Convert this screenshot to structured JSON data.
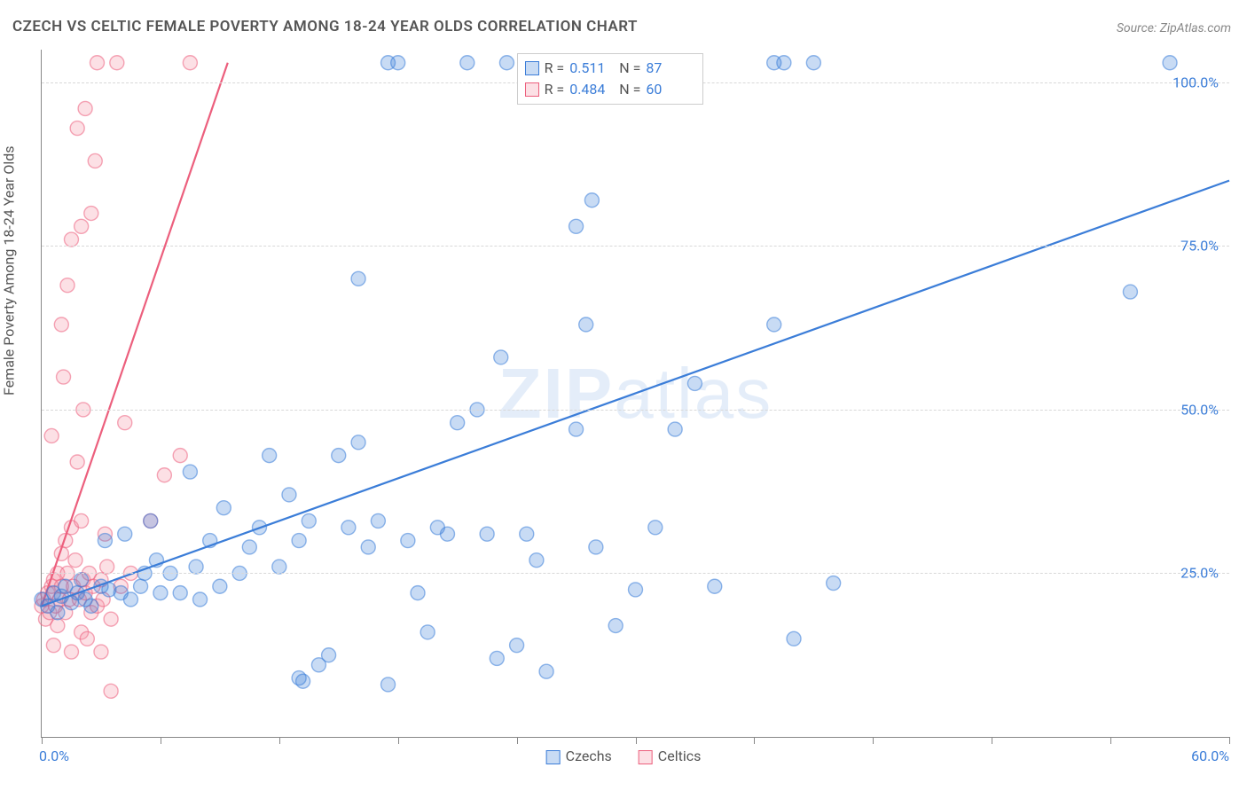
{
  "title": "CZECH VS CELTIC FEMALE POVERTY AMONG 18-24 YEAR OLDS CORRELATION CHART",
  "source_label": "Source: ",
  "source_value": "ZipAtlas.com",
  "y_axis_label": "Female Poverty Among 18-24 Year Olds",
  "watermark_bold": "ZIP",
  "watermark_light": "atlas",
  "chart": {
    "type": "scatter",
    "background_color": "#ffffff",
    "grid_color": "#d8d8d8",
    "axis_color": "#888888",
    "text_color": "#555555",
    "value_color": "#3b7dd8",
    "xlim": [
      0,
      60
    ],
    "ylim": [
      0,
      105
    ],
    "x_ticks": [
      0,
      6,
      12,
      18,
      24,
      30,
      36,
      42,
      48,
      54,
      60
    ],
    "x_tick_labels": {
      "0": "0.0%",
      "60": "60.0%"
    },
    "y_gridlines": [
      25,
      50,
      75,
      100
    ],
    "y_tick_labels": {
      "25": "25.0%",
      "50": "50.0%",
      "75": "75.0%",
      "100": "100.0%"
    },
    "marker_radius": 8,
    "marker_stroke_width": 1.4,
    "marker_fill_opacity": 0.28,
    "line_width": 2.2,
    "series": [
      {
        "id": "czech",
        "label": "Czechs",
        "color": "#3b7dd8",
        "stroke": "#3b7dd8",
        "r_value": "0.511",
        "n_value": "87",
        "trend": {
          "x1": 0,
          "y1": 20,
          "x2": 60,
          "y2": 85
        },
        "points": [
          [
            0,
            21
          ],
          [
            0.3,
            20
          ],
          [
            0.6,
            22
          ],
          [
            0.8,
            19
          ],
          [
            1,
            21.5
          ],
          [
            1.2,
            23
          ],
          [
            1.5,
            20.5
          ],
          [
            1.8,
            22
          ],
          [
            2,
            24
          ],
          [
            2.2,
            21
          ],
          [
            2.5,
            20
          ],
          [
            3,
            23
          ],
          [
            3.2,
            30
          ],
          [
            3.4,
            22.5
          ],
          [
            4,
            22
          ],
          [
            4.2,
            31
          ],
          [
            4.5,
            21
          ],
          [
            5,
            23
          ],
          [
            5.2,
            25
          ],
          [
            5.5,
            33
          ],
          [
            5.8,
            27
          ],
          [
            6,
            22
          ],
          [
            6.5,
            25
          ],
          [
            7,
            22
          ],
          [
            7.5,
            40.5
          ],
          [
            7.8,
            26
          ],
          [
            8,
            21
          ],
          [
            8.5,
            30
          ],
          [
            9,
            23
          ],
          [
            9.2,
            35
          ],
          [
            10,
            25
          ],
          [
            10.5,
            29
          ],
          [
            11,
            32
          ],
          [
            11.5,
            43
          ],
          [
            12,
            26
          ],
          [
            12.5,
            37
          ],
          [
            13,
            30
          ],
          [
            13.5,
            33
          ],
          [
            13,
            9
          ],
          [
            13.2,
            8.5
          ],
          [
            14,
            11
          ],
          [
            14.5,
            12.5
          ],
          [
            15,
            43
          ],
          [
            15.5,
            32
          ],
          [
            16,
            45
          ],
          [
            16,
            70
          ],
          [
            16.5,
            29
          ],
          [
            17,
            33
          ],
          [
            17.5,
            8
          ],
          [
            17.5,
            103
          ],
          [
            18,
            103
          ],
          [
            18.5,
            30
          ],
          [
            19,
            22
          ],
          [
            19.5,
            16
          ],
          [
            20,
            32
          ],
          [
            20.5,
            31
          ],
          [
            21,
            48
          ],
          [
            21.5,
            103
          ],
          [
            22,
            50
          ],
          [
            22.5,
            31
          ],
          [
            23,
            12
          ],
          [
            23.2,
            58
          ],
          [
            23.5,
            103
          ],
          [
            24,
            14
          ],
          [
            24.5,
            31
          ],
          [
            25,
            27
          ],
          [
            25.5,
            10
          ],
          [
            27,
            47
          ],
          [
            27.5,
            63
          ],
          [
            27.8,
            82
          ],
          [
            28,
            103
          ],
          [
            27,
            78
          ],
          [
            28,
            29
          ],
          [
            29,
            17
          ],
          [
            30,
            22.5
          ],
          [
            31,
            32
          ],
          [
            32,
            47
          ],
          [
            33,
            54
          ],
          [
            34,
            23
          ],
          [
            37,
            103
          ],
          [
            37.5,
            103
          ],
          [
            37,
            63
          ],
          [
            38,
            15
          ],
          [
            39,
            103
          ],
          [
            40,
            23.5
          ],
          [
            55,
            68
          ],
          [
            57,
            103
          ]
        ]
      },
      {
        "id": "celtic",
        "label": "Celtics",
        "color": "#f48fa0",
        "stroke": "#ec5f7d",
        "r_value": "0.484",
        "n_value": "60",
        "trend": {
          "x1": 0,
          "y1": 20,
          "x2": 9.4,
          "y2": 103
        },
        "points": [
          [
            0,
            20
          ],
          [
            0.1,
            21
          ],
          [
            0.2,
            18
          ],
          [
            0.3,
            22
          ],
          [
            0.4,
            19
          ],
          [
            0.5,
            23
          ],
          [
            0.5,
            46
          ],
          [
            0.6,
            14
          ],
          [
            0.6,
            24
          ],
          [
            0.7,
            20
          ],
          [
            0.8,
            25
          ],
          [
            0.8,
            17
          ],
          [
            0.9,
            21
          ],
          [
            1,
            23
          ],
          [
            1,
            28
          ],
          [
            1,
            63
          ],
          [
            1.1,
            55
          ],
          [
            1.2,
            30
          ],
          [
            1.2,
            19
          ],
          [
            1.3,
            25
          ],
          [
            1.3,
            69
          ],
          [
            1.4,
            21
          ],
          [
            1.5,
            32
          ],
          [
            1.5,
            13
          ],
          [
            1.5,
            76
          ],
          [
            1.6,
            23
          ],
          [
            1.7,
            27
          ],
          [
            1.8,
            42
          ],
          [
            1.8,
            93
          ],
          [
            1.9,
            21
          ],
          [
            2,
            16
          ],
          [
            2,
            33
          ],
          [
            2,
            78
          ],
          [
            2.1,
            24
          ],
          [
            2.1,
            50
          ],
          [
            2.2,
            22
          ],
          [
            2.2,
            96
          ],
          [
            2.3,
            15
          ],
          [
            2.4,
            25
          ],
          [
            2.5,
            80
          ],
          [
            2.5,
            19
          ],
          [
            2.6,
            23
          ],
          [
            2.7,
            88
          ],
          [
            2.8,
            20
          ],
          [
            2.8,
            103
          ],
          [
            3,
            13
          ],
          [
            3,
            24
          ],
          [
            3.1,
            21
          ],
          [
            3.2,
            31
          ],
          [
            3.3,
            26
          ],
          [
            3.5,
            18
          ],
          [
            3.5,
            7
          ],
          [
            3.8,
            103
          ],
          [
            4,
            23
          ],
          [
            4.2,
            48
          ],
          [
            4.5,
            25
          ],
          [
            5.5,
            33
          ],
          [
            6.2,
            40
          ],
          [
            7,
            43
          ],
          [
            7.5,
            103
          ]
        ]
      }
    ]
  },
  "legend_top": {
    "r_label": "R =",
    "n_label": "N ="
  },
  "legend_bottom": {
    "items": [
      "Czechs",
      "Celtics"
    ]
  }
}
